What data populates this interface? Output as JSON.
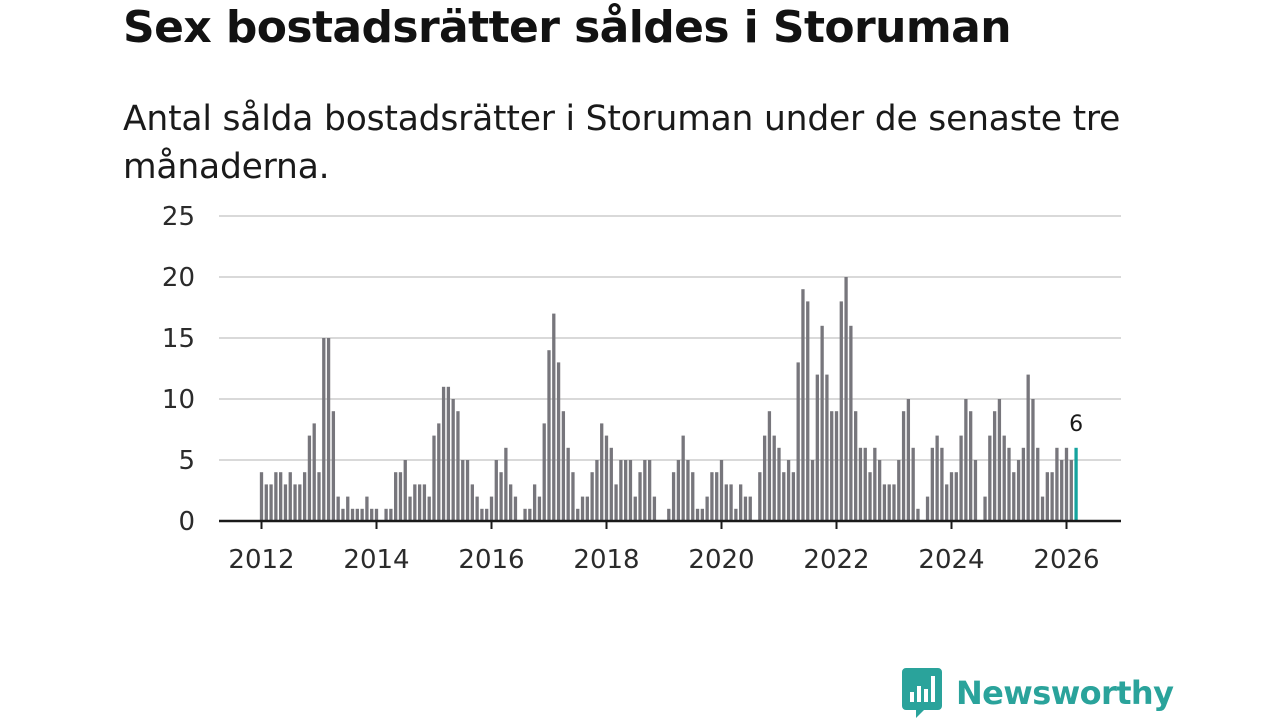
{
  "title": "Sex bostadsrätter såldes i Storuman",
  "subtitle": "Antal sålda bostadsrätter i Storuman under de senaste tre månaderna.",
  "brand": {
    "name": "Newsworthy",
    "icon": "newsworthy-logo-icon",
    "color": "#2aa39b"
  },
  "colors": {
    "bar": "#77767c",
    "highlight": "#15a39e",
    "grid": "#d9d9d9",
    "axis": "#1a1a1a"
  },
  "chart_data": {
    "type": "bar",
    "title": "Sex bostadsrätter såldes i Storuman",
    "xlabel": "",
    "ylabel": "",
    "ylim": [
      0,
      25
    ],
    "yticks": [
      "0",
      "5",
      "10",
      "15",
      "20",
      "25"
    ],
    "xticks": [
      "2012",
      "2014",
      "2016",
      "2018",
      "2020",
      "2022",
      "2024",
      "2026"
    ],
    "start": "2012-01",
    "end": "2026-03",
    "grid": true,
    "highlight_label": "6",
    "values": [
      4,
      3,
      3,
      4,
      4,
      3,
      4,
      3,
      3,
      4,
      7,
      8,
      4,
      15,
      15,
      9,
      2,
      1,
      2,
      1,
      1,
      1,
      2,
      1,
      1,
      0,
      1,
      1,
      4,
      4,
      5,
      2,
      3,
      3,
      3,
      2,
      7,
      8,
      11,
      11,
      10,
      9,
      5,
      5,
      3,
      2,
      1,
      1,
      2,
      5,
      4,
      6,
      3,
      2,
      0,
      1,
      1,
      3,
      2,
      8,
      14,
      17,
      13,
      9,
      6,
      4,
      1,
      2,
      2,
      4,
      5,
      8,
      7,
      6,
      3,
      5,
      5,
      5,
      2,
      4,
      5,
      5,
      2,
      0,
      0,
      1,
      4,
      5,
      7,
      5,
      4,
      1,
      1,
      2,
      4,
      4,
      5,
      3,
      3,
      1,
      3,
      2,
      2,
      0,
      4,
      7,
      9,
      7,
      6,
      4,
      5,
      4,
      13,
      19,
      18,
      5,
      12,
      16,
      12,
      9,
      9,
      18,
      20,
      16,
      9,
      6,
      6,
      4,
      6,
      5,
      3,
      3,
      3,
      5,
      9,
      10,
      6,
      1,
      0,
      2,
      6,
      7,
      6,
      3,
      4,
      4,
      7,
      10,
      9,
      5,
      0,
      2,
      7,
      9,
      10,
      7,
      6,
      4,
      5,
      6,
      12,
      10,
      6,
      2,
      4,
      4,
      6,
      5,
      6,
      5,
      6
    ]
  }
}
